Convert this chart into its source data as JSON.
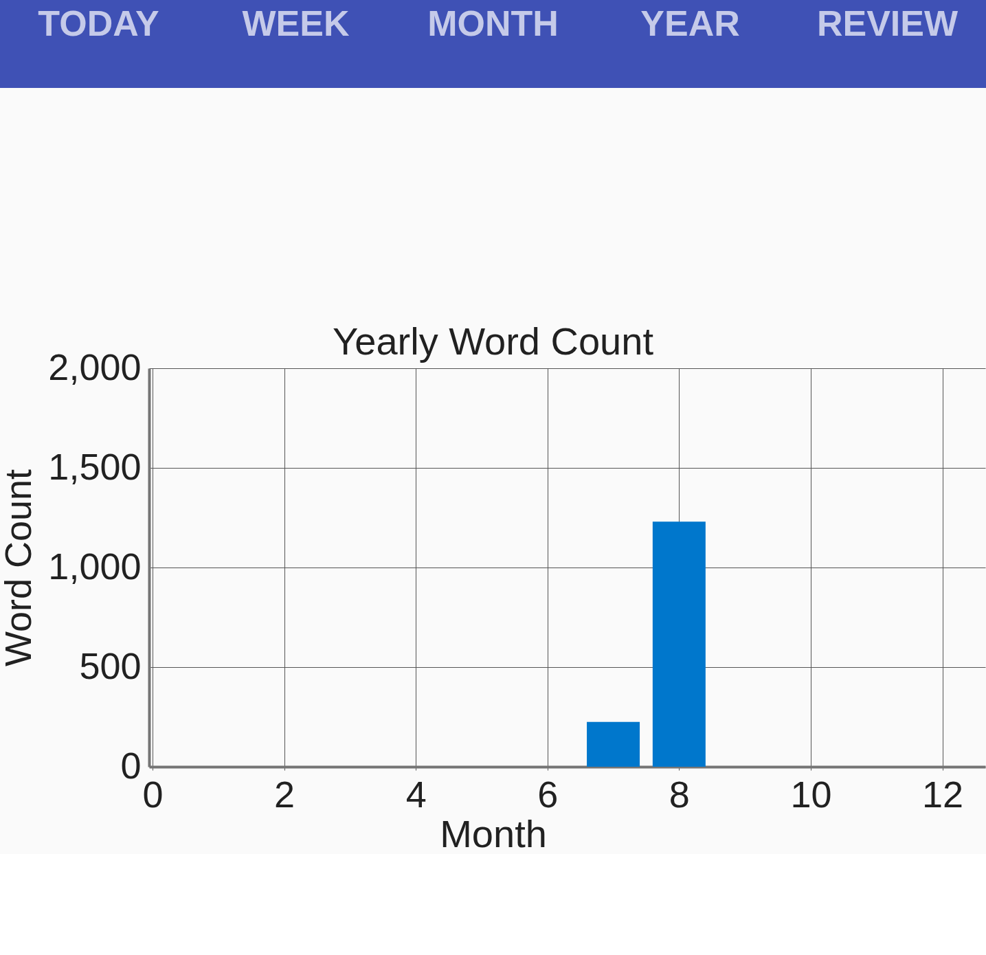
{
  "chart_data": {
    "type": "bar",
    "title": "Yearly Word Count",
    "xlabel": "Month",
    "ylabel": "Word Count",
    "x": [
      7,
      8
    ],
    "values": [
      225,
      1230
    ],
    "color": "#0077cc",
    "xlim": [
      0,
      12.6
    ],
    "xticks": [
      0,
      2,
      4,
      6,
      8,
      10,
      12
    ],
    "ylim": [
      0,
      2000
    ],
    "yticks": [
      0,
      500,
      {
        "value": 1000,
        "label": "1,000"
      },
      {
        "value": 1500,
        "label": "1,500"
      },
      {
        "value": 2000,
        "label": "2,000"
      }
    ],
    "grid": true,
    "annotations": [
      "TODAY",
      "WEEK",
      "MONTH",
      "YEAR",
      "REVIEW"
    ]
  }
}
